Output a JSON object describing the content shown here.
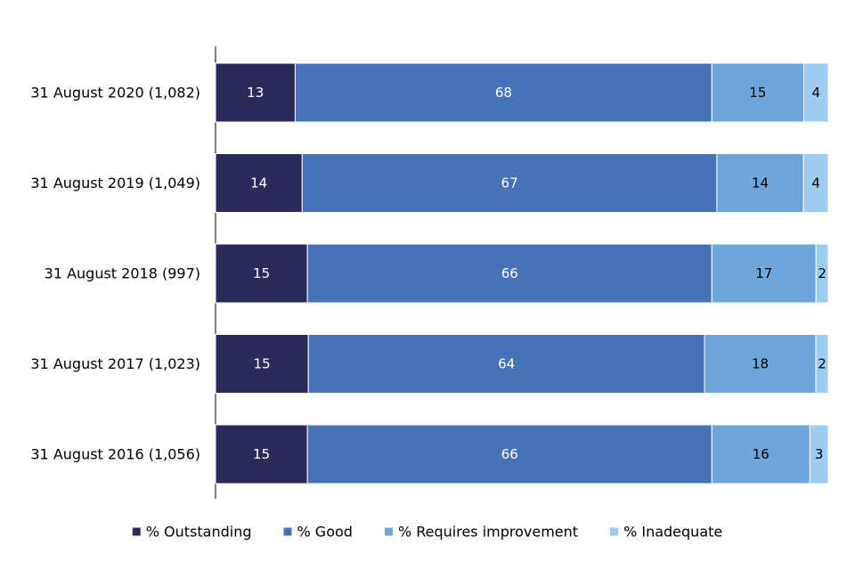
{
  "chart_data": {
    "type": "bar",
    "orientation": "horizontal",
    "stacked": true,
    "categories": [
      "31 August 2020 (1,082)",
      "31 August 2019 (1,049)",
      "31 August 2018 (997)",
      "31 August 2017 (1,023)",
      "31 August 2016 (1,056)"
    ],
    "series": [
      {
        "name": "% Outstanding",
        "color": "#2b2a58",
        "label_color": "#ffffff",
        "values": [
          13,
          14,
          15,
          15,
          15
        ]
      },
      {
        "name": "% Good",
        "color": "#4872b8",
        "label_color": "#ffffff",
        "values": [
          68,
          67,
          66,
          64,
          66
        ]
      },
      {
        "name": "% Requires improvement",
        "color": "#6ea6dc",
        "label_color": "#000000",
        "values": [
          15,
          14,
          17,
          18,
          16
        ]
      },
      {
        "name": "% Inadequate",
        "color": "#9ecbf0",
        "label_color": "#000000",
        "values": [
          4,
          4,
          2,
          2,
          3
        ]
      }
    ],
    "xlim": [
      0,
      100
    ],
    "grid": false,
    "legend_position": "bottom"
  }
}
